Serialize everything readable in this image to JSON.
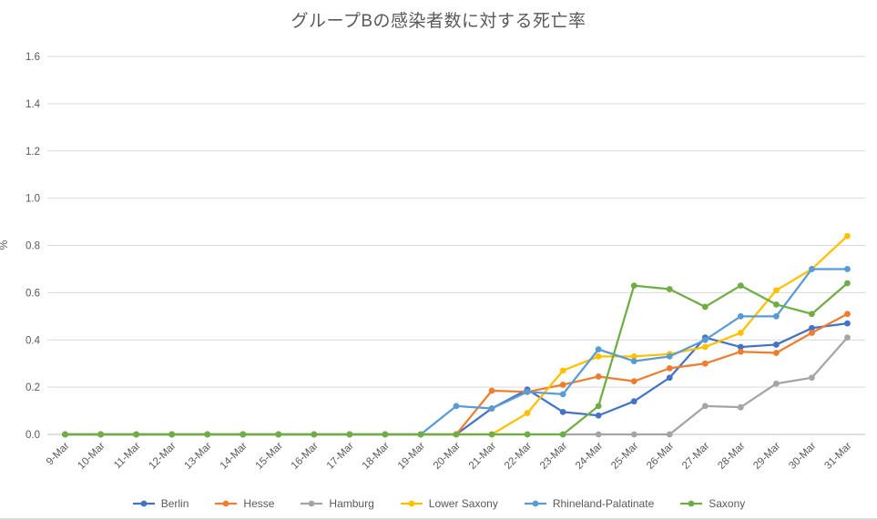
{
  "chart_data": {
    "type": "line",
    "title": "グループBの感染者数に対する死亡率",
    "xlabel": "",
    "ylabel": "%",
    "ylim": [
      0,
      1.6
    ],
    "y_tick_step": 0.2,
    "y_tick_labels": [
      "0.0",
      "0.2",
      "0.4",
      "0.6",
      "0.8",
      "1.0",
      "1.2",
      "1.4",
      "1.6"
    ],
    "grid": true,
    "legend_position": "bottom",
    "categories": [
      "9-Mar",
      "10-Mar",
      "11-Mar",
      "12-Mar",
      "13-Mar",
      "14-Mar",
      "15-Mar",
      "16-Mar",
      "17-Mar",
      "18-Mar",
      "19-Mar",
      "20-Mar",
      "21-Mar",
      "22-Mar",
      "23-Mar",
      "24-Mar",
      "25-Mar",
      "26-Mar",
      "27-Mar",
      "28-Mar",
      "29-Mar",
      "30-Mar",
      "31-Mar"
    ],
    "series": [
      {
        "name": "Berlin",
        "color": "#4472C4",
        "values": [
          0,
          0,
          0,
          0,
          0,
          0,
          0,
          0,
          0,
          0,
          0,
          0,
          0.11,
          0.19,
          0.095,
          0.08,
          0.14,
          0.24,
          0.41,
          0.37,
          0.38,
          0.45,
          0.47
        ]
      },
      {
        "name": "Hesse",
        "color": "#ED7D31",
        "values": [
          0,
          0,
          0,
          0,
          0,
          0,
          0,
          0,
          0,
          0,
          0,
          0,
          0.185,
          0.18,
          0.21,
          0.245,
          0.225,
          0.28,
          0.3,
          0.35,
          0.345,
          0.43,
          0.51
        ]
      },
      {
        "name": "Hamburg",
        "color": "#A5A5A5",
        "values": [
          0,
          0,
          0,
          0,
          0,
          0,
          0,
          0,
          0,
          0,
          0,
          0,
          0,
          0,
          0,
          0,
          0,
          0,
          0.12,
          0.115,
          0.215,
          0.24,
          0.41
        ]
      },
      {
        "name": "Lower Saxony",
        "color": "#FFC000",
        "values": [
          0,
          0,
          0,
          0,
          0,
          0,
          0,
          0,
          0,
          0,
          0,
          0,
          0,
          0.09,
          0.27,
          0.33,
          0.33,
          0.34,
          0.37,
          0.43,
          0.61,
          0.7,
          0.84
        ]
      },
      {
        "name": "Rhineland-Palatinate",
        "color": "#5B9BD5",
        "values": [
          0,
          0,
          0,
          0,
          0,
          0,
          0,
          0,
          0,
          0,
          0,
          0.12,
          0.11,
          0.18,
          0.17,
          0.36,
          0.31,
          0.33,
          0.4,
          0.5,
          0.5,
          0.7,
          0.7
        ]
      },
      {
        "name": "Saxony",
        "color": "#70AD47",
        "values": [
          0,
          0,
          0,
          0,
          0,
          0,
          0,
          0,
          0,
          0,
          0,
          0,
          0,
          0,
          0,
          0.12,
          0.63,
          0.615,
          0.54,
          0.63,
          0.55,
          0.51,
          0.64
        ]
      }
    ],
    "style": {
      "text_color": "#595959",
      "grid_color": "#D9D9D9",
      "axis_color": "#BFBFBF"
    }
  }
}
